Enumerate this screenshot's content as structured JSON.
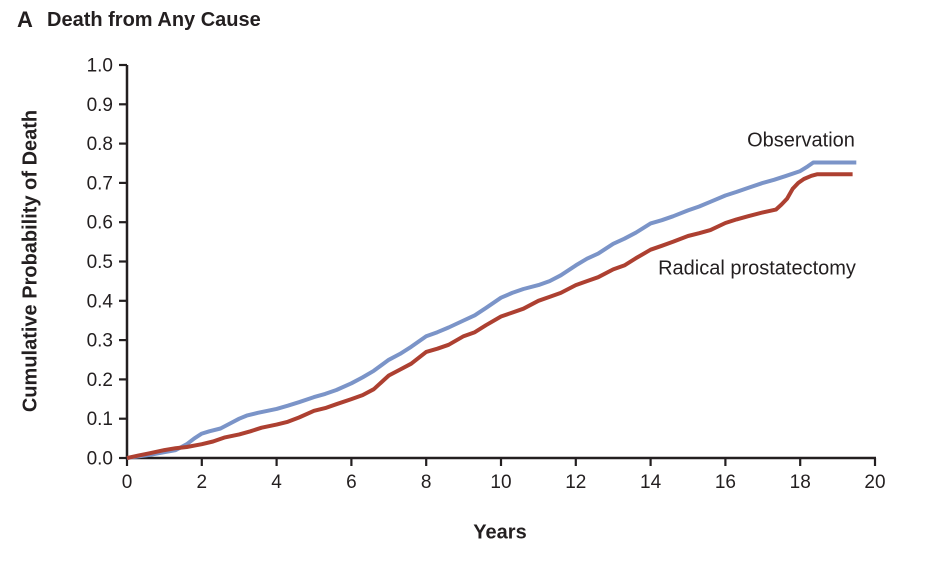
{
  "panel": {
    "letter": "A",
    "title": "Death from Any Cause"
  },
  "chart_data": {
    "type": "line",
    "subtype": "kaplan-meier-cumulative-incidence",
    "title": "Death from Any Cause",
    "xlabel": "Years",
    "ylabel": "Cumulative Probability of Death",
    "xlim": [
      0,
      20
    ],
    "ylim": [
      0,
      1.0
    ],
    "x_ticks": [
      0,
      2,
      4,
      6,
      8,
      10,
      12,
      14,
      16,
      18,
      20
    ],
    "y_ticks": [
      "0.0",
      "0.1",
      "0.2",
      "0.3",
      "0.4",
      "0.5",
      "0.6",
      "0.7",
      "0.8",
      "0.9",
      "1.0"
    ],
    "grid": false,
    "legend_position": "labels annotated next to curves",
    "axis_color": "#231f20",
    "text_color": "#231f20",
    "background_color": "#ffffff",
    "series": [
      {
        "name": "Observation",
        "color": "#7b94c8",
        "label_x": 18.0,
        "label_y": 0.81,
        "points": [
          [
            0,
            0
          ],
          [
            0.3,
            0.004
          ],
          [
            0.6,
            0.008
          ],
          [
            1,
            0.015
          ],
          [
            1.3,
            0.02
          ],
          [
            1.6,
            0.035
          ],
          [
            1.8,
            0.05
          ],
          [
            2,
            0.062
          ],
          [
            2.2,
            0.068
          ],
          [
            2.5,
            0.075
          ],
          [
            2.8,
            0.09
          ],
          [
            3,
            0.1
          ],
          [
            3.2,
            0.108
          ],
          [
            3.5,
            0.115
          ],
          [
            4,
            0.125
          ],
          [
            4.3,
            0.133
          ],
          [
            4.6,
            0.142
          ],
          [
            5,
            0.155
          ],
          [
            5.3,
            0.163
          ],
          [
            5.6,
            0.173
          ],
          [
            6,
            0.19
          ],
          [
            6.3,
            0.205
          ],
          [
            6.6,
            0.222
          ],
          [
            7,
            0.25
          ],
          [
            7.3,
            0.265
          ],
          [
            7.6,
            0.283
          ],
          [
            8,
            0.31
          ],
          [
            8.3,
            0.32
          ],
          [
            8.6,
            0.332
          ],
          [
            9,
            0.35
          ],
          [
            9.3,
            0.363
          ],
          [
            9.6,
            0.382
          ],
          [
            10,
            0.408
          ],
          [
            10.3,
            0.42
          ],
          [
            10.6,
            0.43
          ],
          [
            11,
            0.44
          ],
          [
            11.3,
            0.45
          ],
          [
            11.6,
            0.465
          ],
          [
            12,
            0.49
          ],
          [
            12.3,
            0.507
          ],
          [
            12.6,
            0.52
          ],
          [
            13,
            0.545
          ],
          [
            13.3,
            0.558
          ],
          [
            13.6,
            0.573
          ],
          [
            14,
            0.597
          ],
          [
            14.3,
            0.605
          ],
          [
            14.6,
            0.615
          ],
          [
            15,
            0.63
          ],
          [
            15.3,
            0.64
          ],
          [
            15.6,
            0.652
          ],
          [
            16,
            0.668
          ],
          [
            16.3,
            0.677
          ],
          [
            16.6,
            0.687
          ],
          [
            17,
            0.7
          ],
          [
            17.3,
            0.708
          ],
          [
            17.6,
            0.717
          ],
          [
            18,
            0.73
          ],
          [
            18.2,
            0.742
          ],
          [
            18.35,
            0.752
          ],
          [
            19.5,
            0.752
          ]
        ]
      },
      {
        "name": "Radical prostatectomy",
        "color": "#ad4031",
        "label_x": 16.9,
        "label_y": 0.48,
        "points": [
          [
            0,
            0
          ],
          [
            0.3,
            0.006
          ],
          [
            0.6,
            0.012
          ],
          [
            1,
            0.02
          ],
          [
            1.3,
            0.025
          ],
          [
            1.6,
            0.028
          ],
          [
            2,
            0.035
          ],
          [
            2.3,
            0.042
          ],
          [
            2.6,
            0.052
          ],
          [
            3,
            0.06
          ],
          [
            3.3,
            0.068
          ],
          [
            3.6,
            0.077
          ],
          [
            4,
            0.085
          ],
          [
            4.3,
            0.092
          ],
          [
            4.6,
            0.103
          ],
          [
            5,
            0.12
          ],
          [
            5.3,
            0.127
          ],
          [
            5.6,
            0.137
          ],
          [
            6,
            0.15
          ],
          [
            6.3,
            0.16
          ],
          [
            6.6,
            0.175
          ],
          [
            7,
            0.21
          ],
          [
            7.3,
            0.225
          ],
          [
            7.6,
            0.24
          ],
          [
            8,
            0.27
          ],
          [
            8.3,
            0.278
          ],
          [
            8.6,
            0.288
          ],
          [
            9,
            0.31
          ],
          [
            9.3,
            0.32
          ],
          [
            9.6,
            0.338
          ],
          [
            10,
            0.36
          ],
          [
            10.3,
            0.37
          ],
          [
            10.6,
            0.38
          ],
          [
            11,
            0.4
          ],
          [
            11.3,
            0.41
          ],
          [
            11.6,
            0.42
          ],
          [
            12,
            0.44
          ],
          [
            12.3,
            0.45
          ],
          [
            12.6,
            0.46
          ],
          [
            13,
            0.48
          ],
          [
            13.3,
            0.49
          ],
          [
            13.6,
            0.508
          ],
          [
            14,
            0.53
          ],
          [
            14.3,
            0.54
          ],
          [
            14.6,
            0.55
          ],
          [
            15,
            0.565
          ],
          [
            15.3,
            0.572
          ],
          [
            15.6,
            0.58
          ],
          [
            16,
            0.598
          ],
          [
            16.3,
            0.607
          ],
          [
            16.6,
            0.615
          ],
          [
            17,
            0.625
          ],
          [
            17.35,
            0.632
          ],
          [
            17.5,
            0.645
          ],
          [
            17.65,
            0.66
          ],
          [
            17.8,
            0.685
          ],
          [
            17.95,
            0.7
          ],
          [
            18.1,
            0.71
          ],
          [
            18.3,
            0.718
          ],
          [
            18.45,
            0.722
          ],
          [
            19.4,
            0.722
          ]
        ]
      }
    ]
  }
}
